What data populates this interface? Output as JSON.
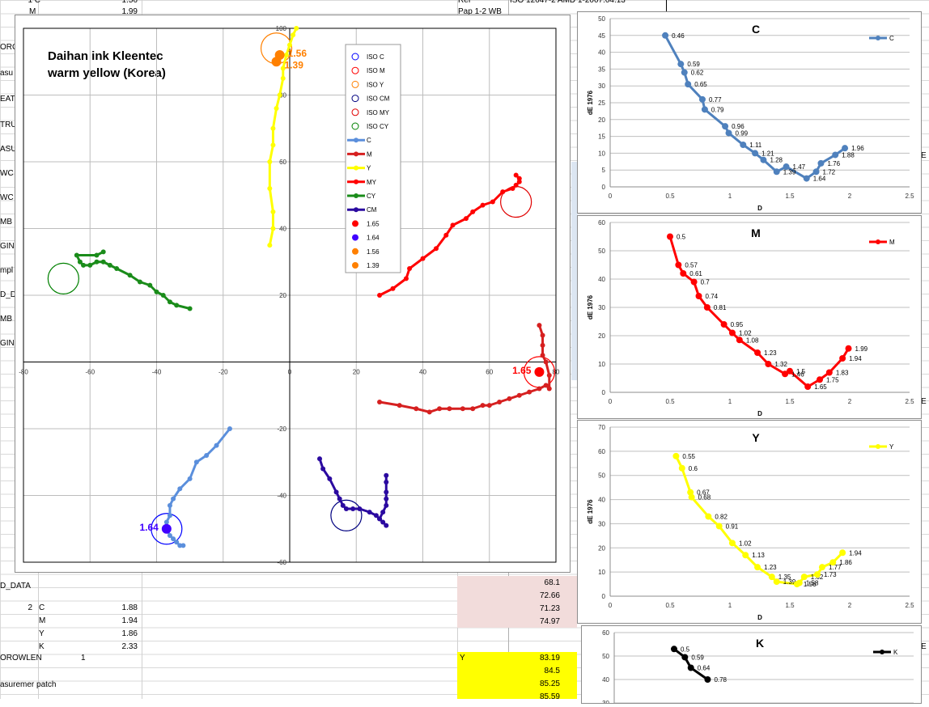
{
  "sheet": {
    "top_ref": "Ref",
    "top_ref_value": "ISO 12647-2 AMD 1-2007.04.13",
    "top_pap": "Pap 1-2 WB",
    "top_row": {
      "label": "1 C",
      "sub": "M",
      "v1": "1.56",
      "v2": "1.99"
    },
    "left_fragments": [
      "ORC",
      "asu",
      "EAT",
      "TRU",
      "ASU",
      "WC",
      "WC",
      "MB",
      "GIN",
      "mpl",
      "D_D",
      "MB",
      "GIN",
      "D_DATA",
      "OROWLEN",
      "asuremer patch"
    ],
    "rows2": [
      {
        "num": "2",
        "ch": "C",
        "val": "1.88"
      },
      {
        "num": "",
        "ch": "M",
        "val": "1.94"
      },
      {
        "num": "",
        "ch": "Y",
        "val": "1.86"
      },
      {
        "num": "",
        "ch": "K",
        "val": "2.33"
      }
    ],
    "rowlen_value": "1",
    "pink_values": [
      "68.1",
      "72.66",
      "71.23",
      "74.97"
    ],
    "yellow_label": "Y",
    "yellow_values": [
      "83.19",
      "84.5",
      "85.25",
      "85.59"
    ],
    "right_edge": [
      "E",
      "E",
      "E"
    ]
  },
  "main_chart": {
    "title_line1": "Daihan ink Kleentec",
    "title_line2": "warm yellow (Korea)",
    "x_ticks": [
      "-80",
      "-60",
      "-40",
      "-20",
      "0",
      "20",
      "40",
      "60",
      "80"
    ],
    "y_ticks": [
      "-60",
      "-40",
      "-20",
      "0",
      "20",
      "40",
      "60",
      "80",
      "100"
    ],
    "legend": [
      {
        "label": "ISO C",
        "kind": "ring",
        "color": "#0000ff"
      },
      {
        "label": "ISO M",
        "kind": "ring",
        "color": "#ff0000"
      },
      {
        "label": "ISO Y",
        "kind": "ring",
        "color": "#ff8000"
      },
      {
        "label": "ISO CM",
        "kind": "ring",
        "color": "#000080"
      },
      {
        "label": "ISO MY",
        "kind": "ring",
        "color": "#e00000"
      },
      {
        "label": "ISO CY",
        "kind": "ring",
        "color": "#008000"
      },
      {
        "label": "C",
        "kind": "line",
        "color": "#5b8fdc"
      },
      {
        "label": "M",
        "kind": "line",
        "color": "#d62020"
      },
      {
        "label": "Y",
        "kind": "line",
        "color": "#ffff00"
      },
      {
        "label": "MY",
        "kind": "line",
        "color": "#ff0000"
      },
      {
        "label": "CY",
        "kind": "line",
        "color": "#1a8c1a"
      },
      {
        "label": "CM",
        "kind": "line",
        "color": "#2b0aa0"
      },
      {
        "label": "1.65",
        "kind": "dot",
        "color": "#ff0000"
      },
      {
        "label": "1.64",
        "kind": "dot",
        "color": "#4000ff"
      },
      {
        "label": "1.56",
        "kind": "dot",
        "color": "#ff8000"
      },
      {
        "label": "1.39",
        "kind": "dot",
        "color": "#ff8000"
      }
    ]
  },
  "chart_data": [
    {
      "type": "scatter",
      "title": "Daihan ink Kleentec warm yellow (Korea)",
      "xlim": [
        -80,
        80
      ],
      "ylim": [
        -60,
        100
      ],
      "series": [
        {
          "name": "C",
          "color": "#5b8fdc",
          "points": [
            [
              -18,
              -20
            ],
            [
              -22,
              -25
            ],
            [
              -25,
              -28
            ],
            [
              -28,
              -30
            ],
            [
              -30,
              -35
            ],
            [
              -33,
              -38
            ],
            [
              -35,
              -41
            ],
            [
              -36,
              -43
            ],
            [
              -36,
              -46
            ],
            [
              -37,
              -48
            ],
            [
              -37,
              -50
            ],
            [
              -36,
              -52
            ],
            [
              -35,
              -53
            ],
            [
              -34,
              -54
            ],
            [
              -33,
              -55
            ],
            [
              -32,
              -55
            ]
          ]
        },
        {
          "name": "M",
          "color": "#d62020",
          "points": [
            [
              27,
              -12
            ],
            [
              33,
              -13
            ],
            [
              38,
              -14
            ],
            [
              42,
              -15
            ],
            [
              45,
              -14
            ],
            [
              48,
              -14
            ],
            [
              52,
              -14
            ],
            [
              55,
              -14
            ],
            [
              58,
              -13
            ],
            [
              60,
              -13
            ],
            [
              63,
              -12
            ],
            [
              66,
              -11
            ],
            [
              69,
              -10
            ],
            [
              72,
              -9
            ],
            [
              75,
              -8
            ],
            [
              77,
              -7
            ],
            [
              78,
              -8
            ],
            [
              78,
              -4
            ],
            [
              77,
              0
            ],
            [
              76,
              2
            ],
            [
              76,
              5
            ],
            [
              76,
              8
            ],
            [
              75,
              11
            ]
          ]
        },
        {
          "name": "Y",
          "color": "#ffff00",
          "points": [
            [
              -6,
              35
            ],
            [
              -5,
              40
            ],
            [
              -5,
              45
            ],
            [
              -6,
              52
            ],
            [
              -6,
              60
            ],
            [
              -5,
              65
            ],
            [
              -5,
              70
            ],
            [
              -4,
              76
            ],
            [
              -3,
              80
            ],
            [
              -2,
              85
            ],
            [
              -2,
              88
            ],
            [
              -1,
              92
            ],
            [
              0,
              95
            ],
            [
              1,
              98
            ],
            [
              2,
              100
            ]
          ]
        },
        {
          "name": "MY",
          "color": "#ff0000",
          "points": [
            [
              27,
              20
            ],
            [
              31,
              22
            ],
            [
              35,
              25
            ],
            [
              36,
              28
            ],
            [
              40,
              31
            ],
            [
              44,
              34
            ],
            [
              47,
              38
            ],
            [
              49,
              41
            ],
            [
              53,
              43
            ],
            [
              55,
              45
            ],
            [
              58,
              47
            ],
            [
              61,
              48
            ],
            [
              64,
              51
            ],
            [
              67,
              52
            ],
            [
              68,
              53
            ],
            [
              69,
              54
            ],
            [
              69,
              55
            ],
            [
              68,
              56
            ]
          ]
        },
        {
          "name": "CY",
          "color": "#1a8c1a",
          "points": [
            [
              -30,
              16
            ],
            [
              -34,
              17
            ],
            [
              -36,
              18
            ],
            [
              -38,
              20
            ],
            [
              -40,
              21
            ],
            [
              -42,
              23
            ],
            [
              -45,
              24
            ],
            [
              -48,
              26
            ],
            [
              -52,
              28
            ],
            [
              -54,
              29
            ],
            [
              -56,
              30
            ],
            [
              -58,
              30
            ],
            [
              -60,
              29
            ],
            [
              -62,
              29
            ],
            [
              -63,
              30
            ],
            [
              -64,
              32
            ],
            [
              -58,
              32
            ],
            [
              -56,
              33
            ]
          ]
        },
        {
          "name": "CM",
          "color": "#2b0aa0",
          "points": [
            [
              9,
              -29
            ],
            [
              10,
              -32
            ],
            [
              12,
              -35
            ],
            [
              14,
              -39
            ],
            [
              15,
              -41
            ],
            [
              16,
              -43
            ],
            [
              17,
              -44
            ],
            [
              19,
              -44
            ],
            [
              21,
              -44
            ],
            [
              24,
              -45
            ],
            [
              26,
              -46
            ],
            [
              27,
              -47
            ],
            [
              28,
              -48
            ],
            [
              29,
              -49
            ],
            [
              27,
              -47
            ],
            [
              28,
              -45
            ],
            [
              29,
              -43
            ],
            [
              29,
              -41
            ],
            [
              29,
              -39
            ],
            [
              29,
              -36
            ],
            [
              29,
              -34
            ]
          ]
        }
      ],
      "iso_targets": [
        {
          "label": "ISO C",
          "x": -37,
          "y": -50,
          "color": "#0000ff"
        },
        {
          "label": "ISO M",
          "x": 75,
          "y": -3,
          "color": "#ff0000"
        },
        {
          "label": "ISO Y",
          "x": -4,
          "y": 94,
          "color": "#ff8000"
        },
        {
          "label": "ISO CM",
          "x": 17,
          "y": -46,
          "color": "#000080"
        },
        {
          "label": "ISO MY",
          "x": 68,
          "y": 48,
          "color": "#e00000"
        },
        {
          "label": "ISO CY",
          "x": -68,
          "y": 25,
          "color": "#008000"
        }
      ],
      "markers": [
        {
          "label": "1.65",
          "x": 75,
          "y": -3,
          "color": "#ff0000",
          "side": "left"
        },
        {
          "label": "1.64",
          "x": -37,
          "y": -50,
          "color": "#4000ff",
          "side": "left"
        },
        {
          "label": "1.56",
          "x": -3,
          "y": 92,
          "color": "#ff8000",
          "side": "right"
        },
        {
          "label": "1.39",
          "x": -4,
          "y": 90,
          "color": "#ff8000",
          "side": "right"
        }
      ]
    },
    {
      "type": "line",
      "title": "C",
      "xlabel": "D",
      "ylabel": "dE 1976",
      "xlim": [
        0,
        2.5
      ],
      "ylim": [
        0,
        50
      ],
      "series_name": "C",
      "color": "#4f81bd",
      "x": [
        0.46,
        0.59,
        0.62,
        0.65,
        0.77,
        0.79,
        0.96,
        0.99,
        1.11,
        1.21,
        1.28,
        1.39,
        1.47,
        1.64,
        1.72,
        1.76,
        1.88,
        1.96
      ],
      "y": [
        45,
        36.5,
        34,
        30.5,
        26,
        23,
        18,
        16,
        12.5,
        10,
        8,
        4.5,
        6,
        2.5,
        4.5,
        7,
        9.5,
        11.5
      ]
    },
    {
      "type": "line",
      "title": "M",
      "xlabel": "D",
      "ylabel": "dE 1976",
      "xlim": [
        0,
        2.5
      ],
      "ylim": [
        0,
        60
      ],
      "series_name": "M",
      "color": "#ff0000",
      "x": [
        0.5,
        0.57,
        0.61,
        0.7,
        0.74,
        0.81,
        0.95,
        1.02,
        1.08,
        1.23,
        1.32,
        1.46,
        1.5,
        1.65,
        1.75,
        1.83,
        1.94,
        1.99
      ],
      "y": [
        55,
        45,
        42,
        39,
        34,
        30,
        24,
        21,
        18.5,
        14,
        10,
        6.5,
        7.5,
        2,
        4.5,
        7,
        12,
        15.5
      ]
    },
    {
      "type": "line",
      "title": "Y",
      "xlabel": "D",
      "ylabel": "dE 1976",
      "xlim": [
        0,
        2.5
      ],
      "ylim": [
        0,
        70
      ],
      "series_name": "Y",
      "color": "#ffff00",
      "x": [
        0.55,
        0.6,
        0.67,
        0.68,
        0.82,
        0.91,
        1.02,
        1.13,
        1.23,
        1.35,
        1.39,
        1.56,
        1.58,
        1.62,
        1.73,
        1.77,
        1.86,
        1.94
      ],
      "y": [
        58,
        53,
        43,
        41,
        33,
        29,
        22,
        17,
        12,
        8,
        6,
        5,
        5.5,
        8,
        9,
        12,
        14,
        18
      ]
    },
    {
      "type": "line",
      "title": "K",
      "xlabel": "",
      "ylabel": "",
      "xlim": [
        0,
        2.5
      ],
      "ylim": [
        30,
        60
      ],
      "series_name": "K",
      "color": "#000000",
      "x": [
        0.5,
        0.59,
        0.64,
        0.78
      ],
      "y": [
        53,
        49.5,
        45,
        40
      ],
      "labels": [
        "0.5",
        "0.59",
        "0.64",
        "0.78"
      ],
      "yticks_visible": [
        "40",
        "50",
        "60"
      ]
    }
  ]
}
